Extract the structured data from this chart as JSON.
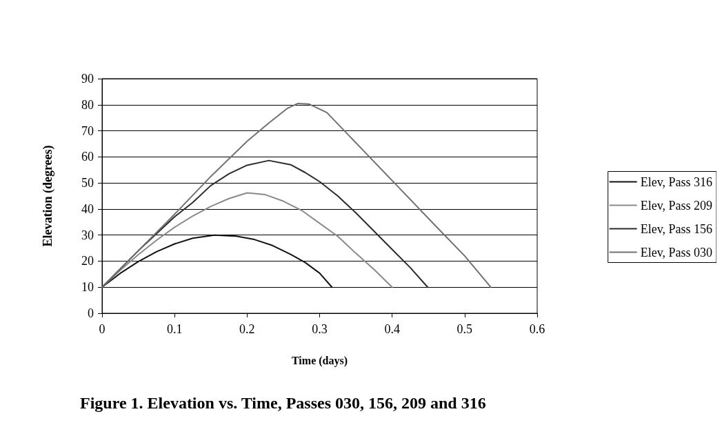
{
  "chart_data": {
    "type": "line",
    "title": "Figure 1. Elevation vs. Time, Passes 030, 156, 209 and 316",
    "xlabel": "Time (days)",
    "ylabel": "Elevation (degrees)",
    "xlim": [
      0,
      0.6
    ],
    "xticks": [
      0,
      0.1,
      0.2,
      0.3,
      0.4,
      0.5,
      0.6
    ],
    "ylim": [
      0,
      90
    ],
    "yticks": [
      0,
      10,
      20,
      30,
      40,
      50,
      60,
      70,
      80,
      90
    ],
    "grid": "y",
    "legend": "right",
    "marker": "none",
    "line_style": "solid",
    "series": [
      {
        "name": "Elev, Pass 316",
        "color": "#111111",
        "x": [
          0,
          0.025,
          0.05,
          0.075,
          0.1,
          0.125,
          0.155,
          0.185,
          0.21,
          0.235,
          0.26,
          0.28,
          0.3,
          0.317
        ],
        "values": [
          10,
          15.3,
          19.8,
          23.6,
          26.6,
          28.8,
          30,
          29.6,
          28.3,
          26,
          22.6,
          19.5,
          15.4,
          10
        ]
      },
      {
        "name": "Elev, Pass 209",
        "color": "#8a8a8a",
        "x": [
          0,
          0.025,
          0.05,
          0.075,
          0.1,
          0.125,
          0.15,
          0.175,
          0.2,
          0.225,
          0.25,
          0.275,
          0.3,
          0.325,
          0.35,
          0.375,
          0.4
        ],
        "values": [
          10,
          16.5,
          22.5,
          28,
          33,
          37.3,
          41,
          44,
          46.2,
          45.5,
          43,
          39.5,
          34.5,
          29.5,
          23,
          16.8,
          10
        ]
      },
      {
        "name": "Elev, Pass 156",
        "color": "#2a2a2a",
        "x": [
          0,
          0.025,
          0.05,
          0.075,
          0.1,
          0.125,
          0.15,
          0.175,
          0.2,
          0.23,
          0.26,
          0.28,
          0.3,
          0.325,
          0.35,
          0.375,
          0.4,
          0.425,
          0.449
        ],
        "values": [
          10,
          17,
          24,
          30.5,
          37,
          42.5,
          49,
          53.5,
          56.8,
          58.6,
          57,
          54,
          50.5,
          45,
          38.5,
          31.5,
          24.5,
          17.5,
          10
        ]
      },
      {
        "name": "Elev, Pass 030",
        "color": "#707070",
        "x": [
          0,
          0.05,
          0.1,
          0.15,
          0.2,
          0.23,
          0.255,
          0.27,
          0.285,
          0.31,
          0.36,
          0.41,
          0.46,
          0.5,
          0.536
        ],
        "values": [
          10,
          24,
          38,
          52.5,
          66,
          73,
          78.5,
          80.5,
          80.3,
          77,
          62.5,
          48,
          33.5,
          22,
          10
        ]
      }
    ]
  }
}
